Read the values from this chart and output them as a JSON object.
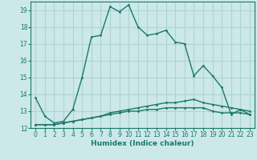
{
  "xlabel": "Humidex (Indice chaleur)",
  "x": [
    0,
    1,
    2,
    3,
    4,
    5,
    6,
    7,
    8,
    9,
    10,
    11,
    12,
    13,
    14,
    15,
    16,
    17,
    18,
    19,
    20,
    21,
    22,
    23
  ],
  "line1_y": [
    13.8,
    12.7,
    12.3,
    12.4,
    13.1,
    15.0,
    17.4,
    17.5,
    19.2,
    18.9,
    19.3,
    18.0,
    17.5,
    17.6,
    17.8,
    17.1,
    17.0,
    15.1,
    15.7,
    15.1,
    14.4,
    12.8,
    13.1,
    12.8
  ],
  "line2_y": [
    12.2,
    12.2,
    12.2,
    12.3,
    12.4,
    12.5,
    12.6,
    12.7,
    12.9,
    13.0,
    13.1,
    13.2,
    13.3,
    13.4,
    13.5,
    13.5,
    13.6,
    13.7,
    13.5,
    13.4,
    13.3,
    13.2,
    13.1,
    13.0
  ],
  "line3_y": [
    12.2,
    12.2,
    12.2,
    12.3,
    12.4,
    12.5,
    12.6,
    12.7,
    12.8,
    12.9,
    13.0,
    13.0,
    13.1,
    13.1,
    13.2,
    13.2,
    13.2,
    13.2,
    13.2,
    13.0,
    12.9,
    12.9,
    12.9,
    12.8
  ],
  "line_color": "#1a7a6a",
  "bg_color": "#cce8e8",
  "grid_color": "#aed4d4",
  "ylim": [
    12,
    19.5
  ],
  "xlim": [
    -0.5,
    23.5
  ],
  "yticks": [
    12,
    13,
    14,
    15,
    16,
    17,
    18,
    19
  ],
  "xticks": [
    0,
    1,
    2,
    3,
    4,
    5,
    6,
    7,
    8,
    9,
    10,
    11,
    12,
    13,
    14,
    15,
    16,
    17,
    18,
    19,
    20,
    21,
    22,
    23
  ]
}
